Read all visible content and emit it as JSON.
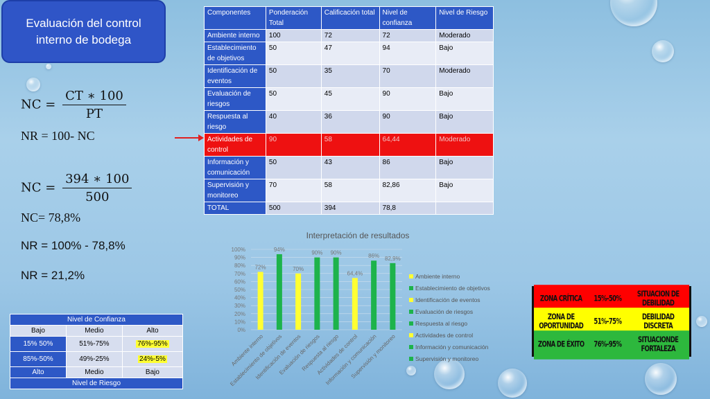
{
  "title": "Evaluación del control interno de bodega",
  "formulas": {
    "nc_label": "NC =",
    "nc_num": "CT ∗ 100",
    "nc_den": "PT",
    "nr_formula": "NR = 100- NC",
    "nc2_label": "NC =",
    "nc2_num": "394 ∗ 100",
    "nc2_den": "500",
    "nc_result": "NC= 78,8%",
    "nr_calc": "NR = 100% - 78,8%",
    "nr_result": "NR = 21,2%"
  },
  "main_table": {
    "headers": [
      "Componentes",
      "Ponderación Total",
      "Calificación total",
      "Nivel de confianza",
      "Nivel de Riesgo"
    ],
    "rows": [
      [
        "Ambiente interno",
        "100",
        "72",
        "72",
        "Moderado"
      ],
      [
        "Establecimiento de objetivos",
        "50",
        "47",
        "94",
        "Bajo"
      ],
      [
        "Identificación de eventos",
        "50",
        "35",
        "70",
        "Moderado"
      ],
      [
        "Evaluación de riesgos",
        "50",
        "45",
        "90",
        "Bajo"
      ],
      [
        "Respuesta al riesgo",
        "40",
        "36",
        "90",
        "Bajo"
      ],
      [
        "Actividades de control",
        "90",
        "58",
        "64,44",
        "Moderado"
      ],
      [
        "Información y comunicación",
        "50",
        "43",
        "86",
        "Bajo"
      ],
      [
        "Supervisión y monitoreo",
        "70",
        "58",
        "82,86",
        "Bajo"
      ],
      [
        "TOTAL",
        "500",
        "394",
        "78,8",
        ""
      ]
    ]
  },
  "chart_data": {
    "type": "bar",
    "title": "Interpretación de resultados",
    "categories": [
      "Ambiente interno",
      "Establecimiento de objetivos",
      "Identificación de eventos",
      "Evaluación de riesgos",
      "Respuesta al riesgo",
      "Actividades de control",
      "Información y comunicación",
      "Supervisión y monitoreo"
    ],
    "values": [
      72,
      94,
      70,
      90,
      90,
      64.4,
      86,
      82.9
    ],
    "data_labels": [
      "72%",
      "94%",
      "70%",
      "90%",
      "90%",
      "64,4%",
      "86%",
      "82,9%"
    ],
    "colors": [
      "#ffff33",
      "#1db34b",
      "#ffff33",
      "#1db34b",
      "#1db34b",
      "#ffff33",
      "#1db34b",
      "#1db34b"
    ],
    "ylim": [
      0,
      100
    ],
    "yticks": [
      "0%",
      "10%",
      "20%",
      "30%",
      "40%",
      "50%",
      "60%",
      "70%",
      "80%",
      "90%",
      "100%"
    ],
    "legend_position": "right"
  },
  "confidence_table": {
    "top_title": "Nivel de Confianza",
    "header": [
      "Bajo",
      "Medio",
      "Alto"
    ],
    "row1": [
      "15% 50%",
      "51%-75%",
      "76%-95%"
    ],
    "row2": [
      "85%-50%",
      "49%-25%",
      "24%-5%"
    ],
    "footer": [
      "Alto",
      "Medio",
      "Bajo"
    ],
    "bottom_title": "Nivel de Riesgo"
  },
  "zones": {
    "rows": [
      {
        "label": "ZONA CRÍTICA",
        "range": "15%-50%",
        "situation": "SITUACION DE DEBILIDAD",
        "color": "#ff0000"
      },
      {
        "label": "ZONA DE OPORTUNIDAD",
        "range": "51%-75%",
        "situation": "DEBILIDAD DISCRETA",
        "color": "#ffff00"
      },
      {
        "label": "ZONA DE ÉXITO",
        "range": "76%-95%",
        "situation": "SITUACIONDE FORTALEZA",
        "color": "#2db83d"
      }
    ]
  }
}
